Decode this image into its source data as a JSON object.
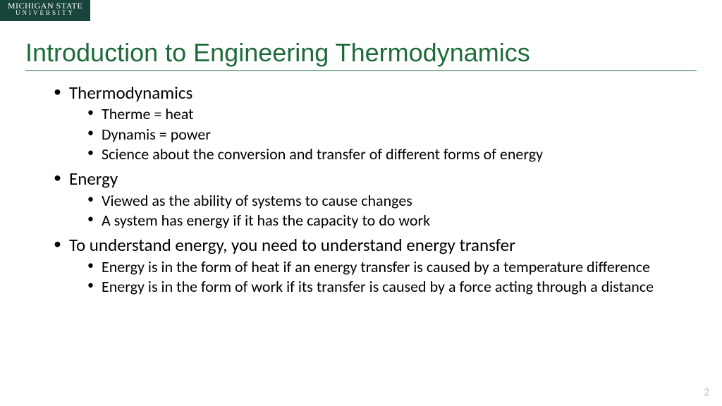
{
  "logo": {
    "line1": "MICHIGAN STATE",
    "line2": "UNIVERSITY",
    "bg_color": "#18453b",
    "text_color": "#ffffff"
  },
  "title": {
    "text": "Introduction to Engineering Thermodynamics",
    "color": "#1e6b3a",
    "fontsize": 36
  },
  "bullets": [
    {
      "text": "Thermodynamics",
      "children": [
        {
          "text": "Therme = heat"
        },
        {
          "text": "Dynamis = power"
        },
        {
          "text": "Science about the conversion and transfer of different forms of energy"
        }
      ]
    },
    {
      "text": "Energy",
      "children": [
        {
          "text": "Viewed as the ability of systems to cause changes"
        },
        {
          "text": "A system has energy if it has the capacity to do work"
        }
      ]
    },
    {
      "text": "To understand energy, you need to understand energy transfer",
      "children": [
        {
          "text": "Energy is in the form of heat if an energy transfer is caused by a temperature difference"
        },
        {
          "text": "Energy is in the form of work if its transfer is caused by a force acting through a distance"
        }
      ]
    }
  ],
  "page_number": "2",
  "body_text_color": "#000000",
  "background_color": "#ffffff"
}
